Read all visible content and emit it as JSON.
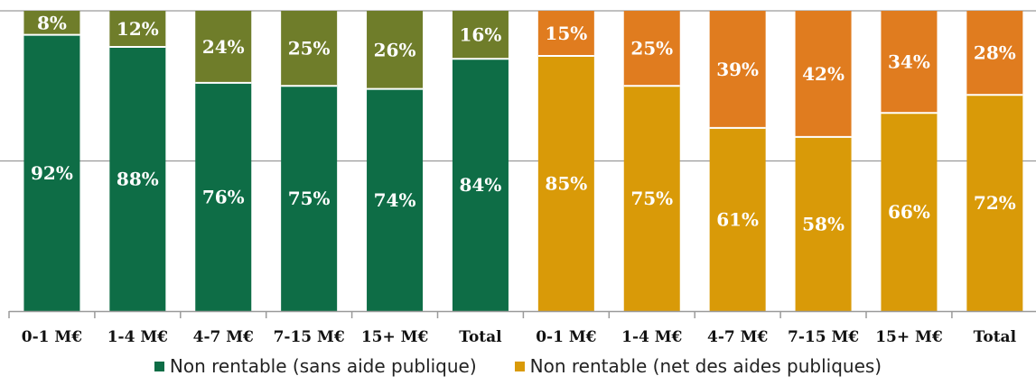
{
  "chart_data": {
    "type": "bar",
    "stacked": true,
    "normalized": true,
    "categories": [
      "0-1 M€",
      "1-4 M€",
      "4-7 M€",
      "7-15 M€",
      "15+ M€",
      "Total",
      "0-1 M€",
      "1-4 M€",
      "4-7 M€",
      "7-15 M€",
      "15+ M€",
      "Total"
    ],
    "value_format": "percent",
    "ylim": [
      0,
      100
    ],
    "grid": true,
    "legend_position": "bottom",
    "groups": [
      {
        "legend_label": "Non rentable (sans aide publique)",
        "bottom_color": "#0e6d46",
        "top_color": "#6f7d2a",
        "bottom_values": [
          92,
          88,
          76,
          75,
          74,
          84
        ],
        "top_values": [
          8,
          12,
          24,
          25,
          26,
          16
        ]
      },
      {
        "legend_label": "Non rentable (net des aides publiques)",
        "bottom_color": "#d99a08",
        "top_color": "#e07c1f",
        "bottom_values": [
          85,
          75,
          61,
          58,
          66,
          72
        ],
        "top_values": [
          15,
          25,
          39,
          42,
          34,
          28
        ]
      }
    ]
  }
}
